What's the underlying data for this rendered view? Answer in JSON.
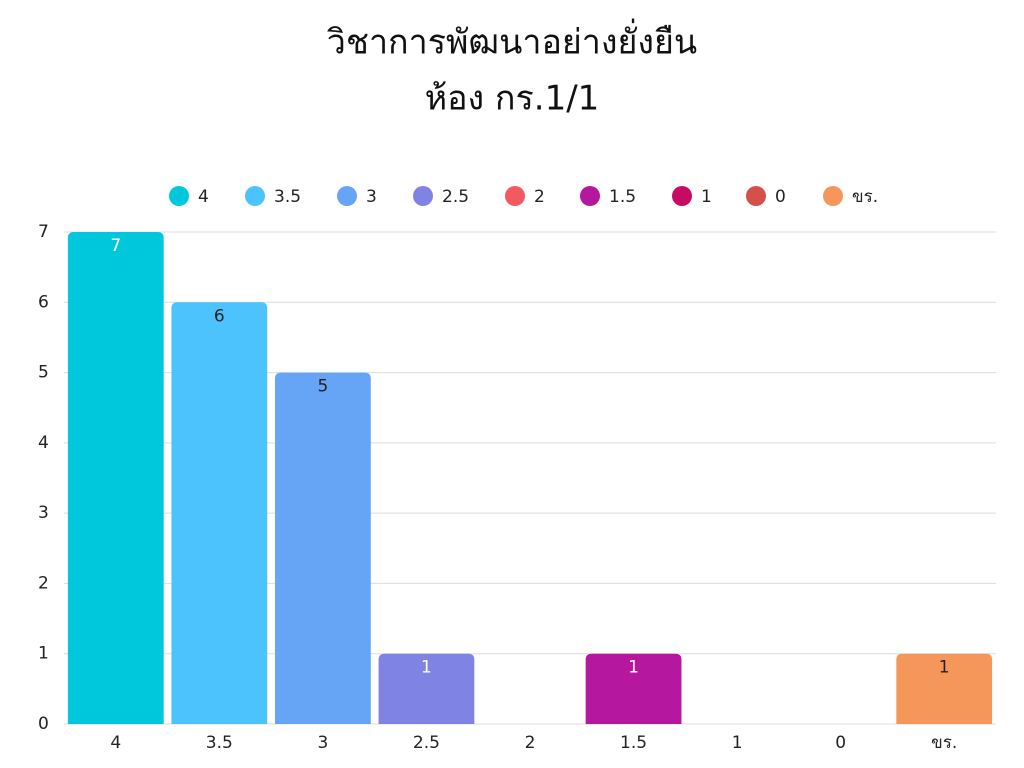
{
  "chart_data": {
    "type": "bar",
    "title": "วิชาการพัฒนาอย่างยั่งยืน",
    "subtitle": "ห้อง กร.1/1",
    "categories": [
      "4",
      "3.5",
      "3",
      "2.5",
      "2",
      "1.5",
      "1",
      "0",
      "ขร."
    ],
    "values": [
      7,
      6,
      5,
      1,
      0,
      1,
      0,
      0,
      1
    ],
    "colors": [
      "#00c8dc",
      "#4cc3fc",
      "#66a4f6",
      "#7f84e4",
      "#f25a5f",
      "#b5179e",
      "#c70a64",
      "#d6504b",
      "#f5975a"
    ],
    "ylim": [
      0,
      7
    ],
    "yticks": [
      0,
      1,
      2,
      3,
      4,
      5,
      6,
      7
    ],
    "grid": true,
    "legend": "top"
  }
}
